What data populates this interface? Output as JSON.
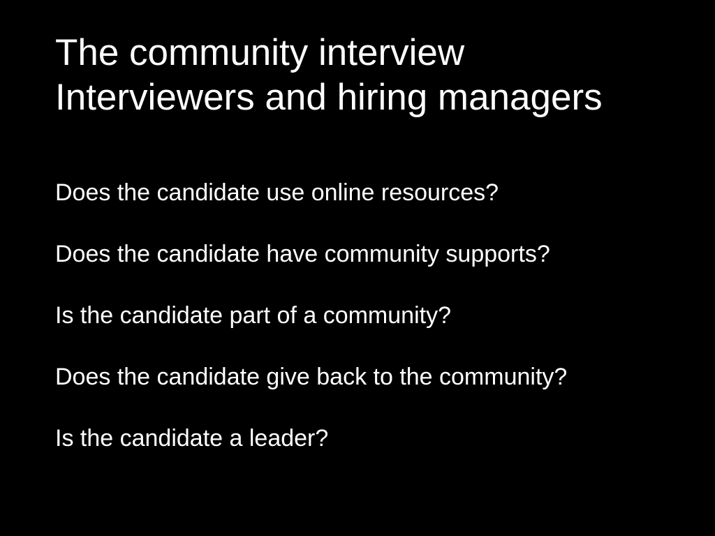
{
  "slide": {
    "title_lines": [
      "The community interview",
      "Interviewers and hiring managers"
    ],
    "bullets": [
      "Does the candidate use online resources?",
      "Does the candidate have community supports?",
      "Is the candidate part of a community?",
      "Does the candidate give back to the community?",
      "Is the candidate a leader?"
    ]
  },
  "colors": {
    "background": "#000000",
    "text": "#ffffff"
  }
}
